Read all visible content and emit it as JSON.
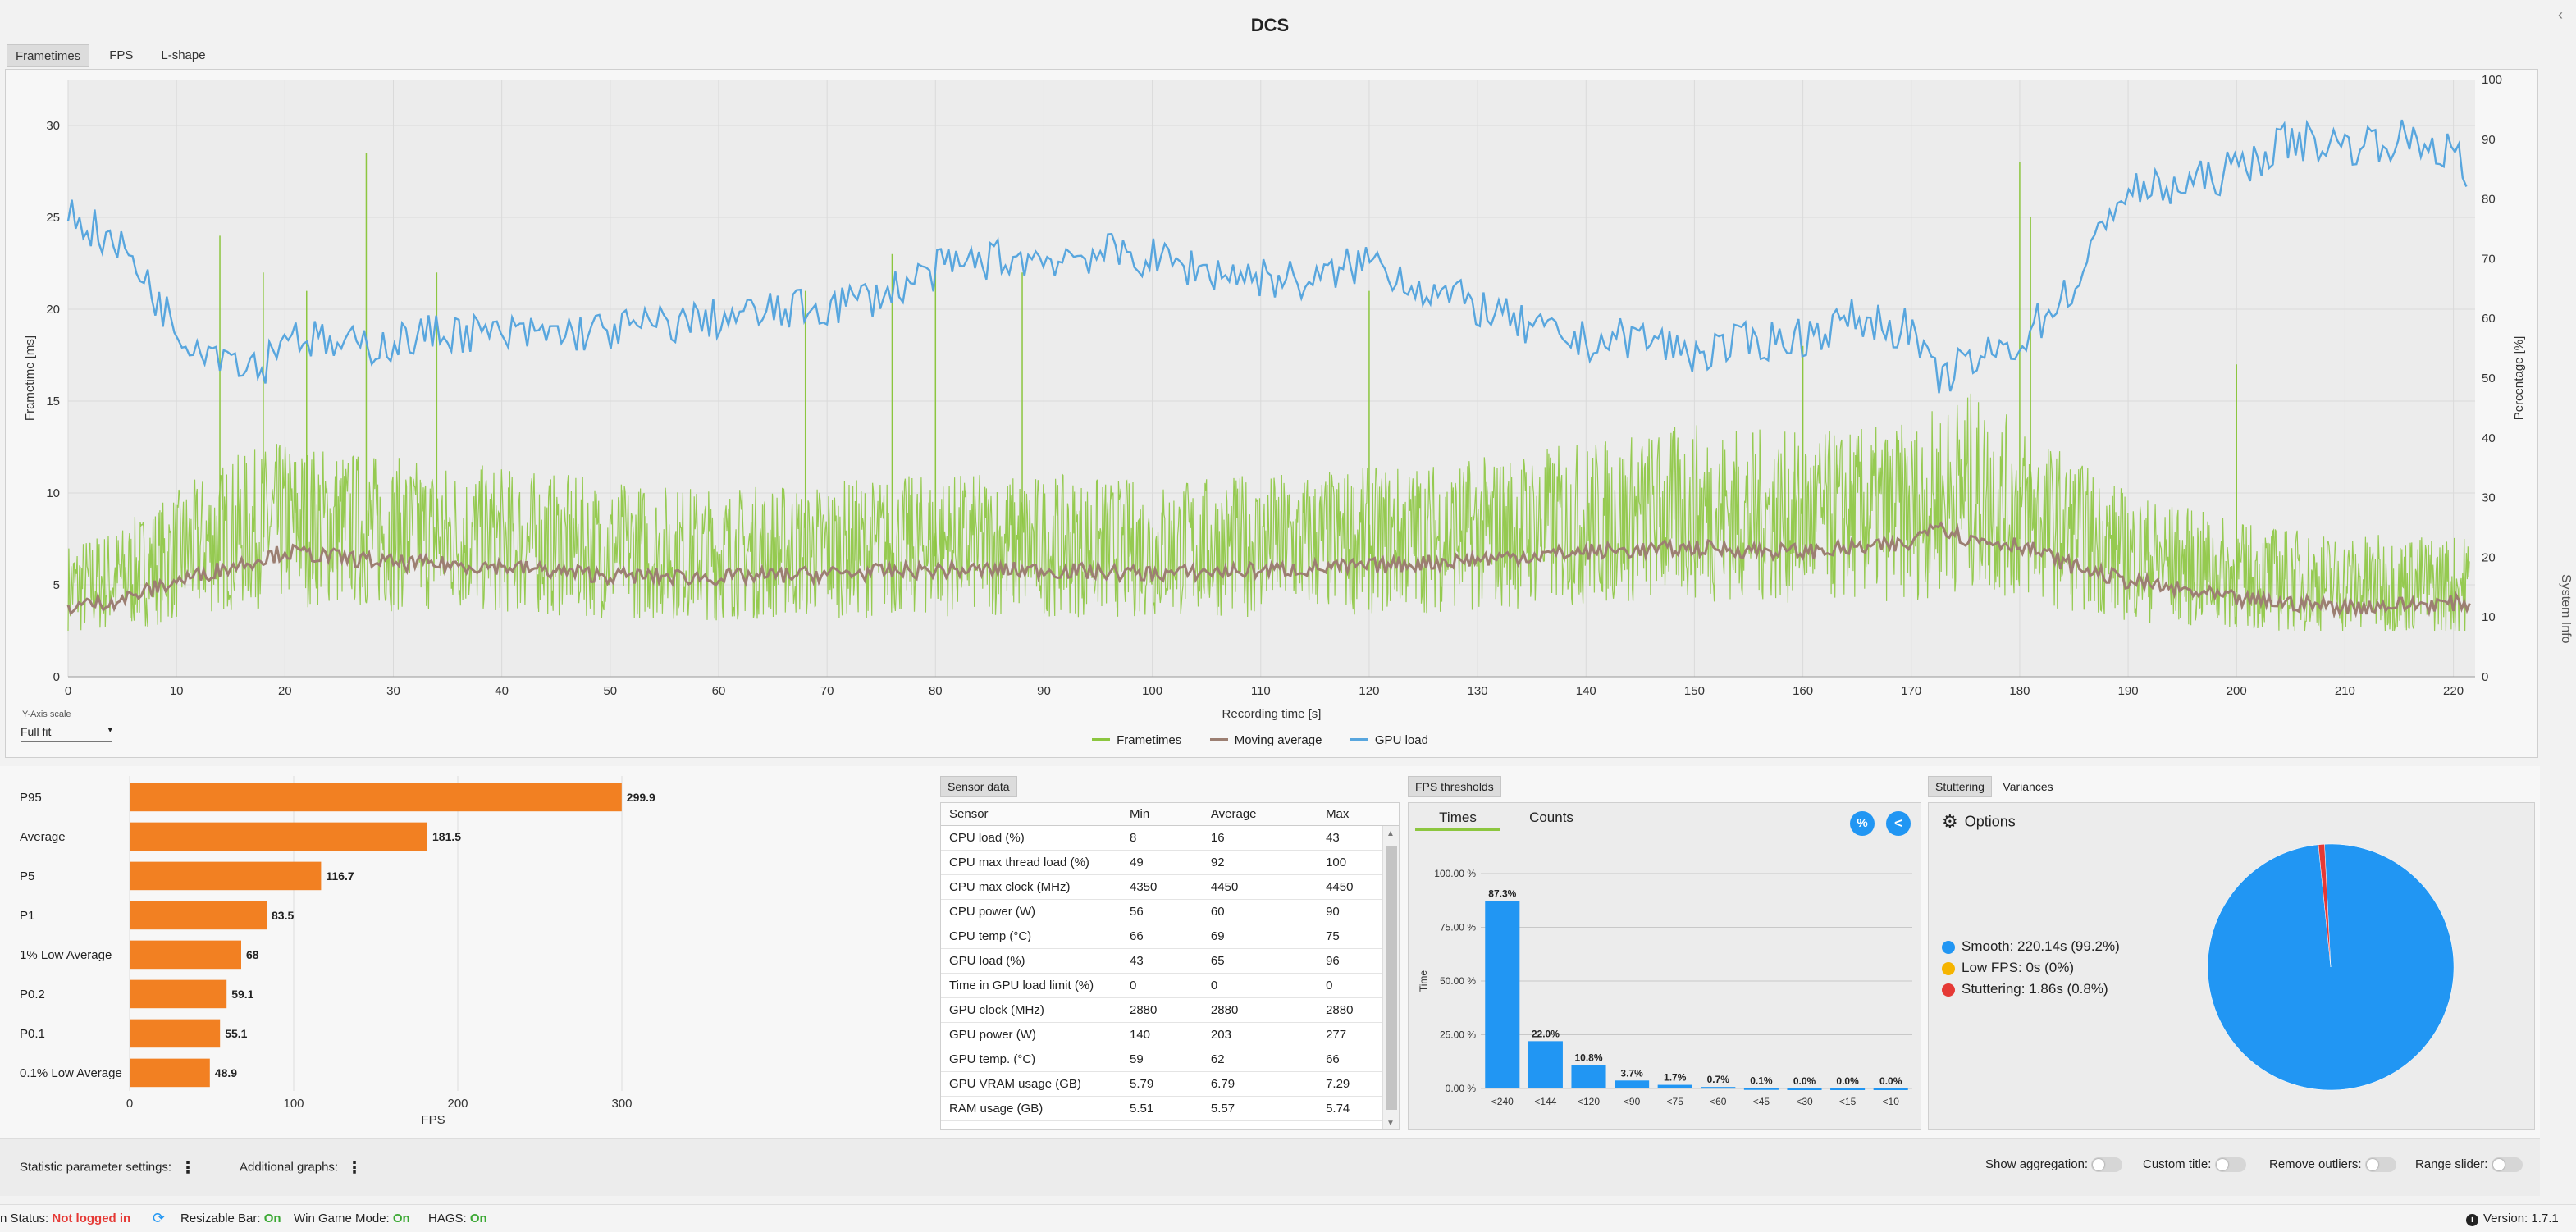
{
  "app": {
    "title": "DCS",
    "system_info_label": "System Info"
  },
  "tabs": [
    {
      "label": "Frametimes",
      "active": true
    },
    {
      "label": "FPS",
      "active": false
    },
    {
      "label": "L-shape",
      "active": false
    }
  ],
  "yaxis_scale": {
    "label": "Y-Axis scale",
    "value": "Full fit"
  },
  "chart_data": [
    {
      "type": "line",
      "title": "",
      "xlabel": "Recording time [s]",
      "ylabel": "Frametime [ms]",
      "y2label": "Percentage [%]",
      "xlim": [
        0,
        222
      ],
      "ylim": [
        0,
        32.5
      ],
      "y2lim": [
        0,
        100
      ],
      "xticks": [
        0,
        10,
        20,
        30,
        40,
        50,
        60,
        70,
        80,
        90,
        100,
        110,
        120,
        130,
        140,
        150,
        160,
        170,
        180,
        190,
        200,
        210,
        220
      ],
      "yticks": [
        0,
        5,
        10,
        15,
        20,
        25,
        30
      ],
      "y2ticks": [
        0,
        10,
        20,
        30,
        40,
        50,
        60,
        70,
        80,
        90,
        100
      ],
      "grid": true,
      "legend": "bottom-center",
      "series": [
        {
          "name": "Frametimes",
          "color": "#8cc63f",
          "axis": "left",
          "x": [
            0,
            5,
            10,
            15,
            20,
            25,
            30,
            40,
            50,
            60,
            70,
            80,
            90,
            100,
            110,
            120,
            130,
            140,
            150,
            160,
            170,
            175,
            180,
            185,
            190,
            200,
            210,
            220
          ],
          "y": [
            4.0,
            4.5,
            5.5,
            6.5,
            7.0,
            6.8,
            6.5,
            6.2,
            5.8,
            5.6,
            5.8,
            6.0,
            6.0,
            5.8,
            6.0,
            6.2,
            6.5,
            7.0,
            7.5,
            7.2,
            7.5,
            8.5,
            7.5,
            6.5,
            5.5,
            4.6,
            4.2,
            4.2
          ],
          "spikes": [
            [
              14,
              24
            ],
            [
              18,
              22
            ],
            [
              22,
              21
            ],
            [
              27.5,
              28.5
            ],
            [
              34,
              22
            ],
            [
              68,
              21
            ],
            [
              76,
              23
            ],
            [
              80,
              22
            ],
            [
              88,
              22
            ],
            [
              120,
              21
            ],
            [
              160,
              18
            ],
            [
              180,
              28
            ],
            [
              181,
              25
            ],
            [
              200,
              17
            ]
          ]
        },
        {
          "name": "Moving average",
          "color": "#9c7f72",
          "axis": "left",
          "x": [
            0,
            5,
            10,
            15,
            20,
            25,
            30,
            40,
            50,
            60,
            70,
            80,
            90,
            100,
            110,
            120,
            130,
            140,
            150,
            160,
            170,
            172,
            175,
            180,
            185,
            190,
            200,
            210,
            220
          ],
          "y": [
            3.8,
            4.2,
            5.2,
            6.0,
            6.8,
            6.5,
            6.2,
            6.0,
            5.5,
            5.4,
            5.6,
            5.8,
            5.8,
            5.6,
            5.8,
            6.0,
            6.4,
            6.8,
            7.0,
            6.8,
            7.2,
            8.5,
            7.5,
            7.2,
            6.0,
            5.2,
            4.2,
            3.8,
            4.0
          ]
        },
        {
          "name": "GPU load",
          "color": "#58a6de",
          "axis": "right",
          "x": [
            0,
            3,
            6,
            8,
            10,
            12,
            15,
            18,
            20,
            25,
            30,
            35,
            40,
            50,
            60,
            70,
            75,
            80,
            85,
            90,
            95,
            100,
            105,
            110,
            115,
            120,
            125,
            130,
            135,
            140,
            145,
            150,
            155,
            160,
            165,
            170,
            172,
            175,
            180,
            183,
            186,
            188,
            190,
            195,
            200,
            205,
            210,
            215,
            220,
            222
          ],
          "y": [
            78,
            74,
            70,
            64,
            58,
            56,
            54,
            52,
            58,
            55,
            56,
            58,
            57,
            58,
            60,
            62,
            64,
            68,
            70,
            70,
            71,
            70,
            68,
            67,
            66,
            70,
            65,
            62,
            58,
            56,
            57,
            54,
            56,
            57,
            60,
            58,
            50,
            52,
            56,
            62,
            67,
            78,
            81,
            82,
            85,
            90,
            89,
            90,
            88,
            80
          ]
        }
      ]
    },
    {
      "type": "bar",
      "orientation": "horizontal",
      "title": "",
      "xlabel": "FPS",
      "categories": [
        "P95",
        "Average",
        "P5",
        "P1",
        "1% Low Average",
        "P0.2",
        "P0.1",
        "0.1% Low Average"
      ],
      "values": [
        299.9,
        181.5,
        116.7,
        83.5,
        68,
        59.1,
        55.1,
        48.9
      ],
      "value_labels": [
        "299.9",
        "181.5",
        "116.7",
        "83.5",
        "68",
        "59.1",
        "55.1",
        "48.9"
      ],
      "xticks": [
        0,
        100,
        200,
        300
      ],
      "xlim": [
        0,
        357
      ],
      "color": "#f28022",
      "grid": true
    },
    {
      "type": "bar",
      "title": "",
      "ylabel": "Time",
      "categories": [
        "<240",
        "<144",
        "<120",
        "<90",
        "<75",
        "<60",
        "<45",
        "<30",
        "<15",
        "<10"
      ],
      "values": [
        87.3,
        22.0,
        10.8,
        3.7,
        1.7,
        0.7,
        0.1,
        0.0,
        0.0,
        0.0
      ],
      "value_labels": [
        "87.3%",
        "22.0%",
        "10.8%",
        "3.7%",
        "1.7%",
        "0.7%",
        "0.1%",
        "0.0%",
        "0.0%",
        "0.0%"
      ],
      "yticks": [
        "0.00 %",
        "25.00 %",
        "50.00 %",
        "75.00 %",
        "100.00 %"
      ],
      "ylim": [
        0,
        100
      ],
      "color": "#2196f3",
      "grid": true
    },
    {
      "type": "pie",
      "title": "",
      "labels": [
        "Smooth",
        "Low FPS",
        "Stuttering"
      ],
      "values": [
        99.2,
        0.0,
        0.8
      ],
      "colors": [
        "#2196f3",
        "#f5b400",
        "#e53935"
      ],
      "legend": "left"
    }
  ],
  "sensor": {
    "tab_label": "Sensor data",
    "headers": [
      "Sensor",
      "Min",
      "Average",
      "Max"
    ],
    "rows": [
      [
        "CPU load (%)",
        "8",
        "16",
        "43"
      ],
      [
        "CPU max thread load (%)",
        "49",
        "92",
        "100"
      ],
      [
        "CPU max clock (MHz)",
        "4350",
        "4450",
        "4450"
      ],
      [
        "CPU power (W)",
        "56",
        "60",
        "90"
      ],
      [
        "CPU temp (°C)",
        "66",
        "69",
        "75"
      ],
      [
        "GPU load (%)",
        "43",
        "65",
        "96"
      ],
      [
        "Time in GPU load limit (%)",
        "0",
        "0",
        "0"
      ],
      [
        "GPU clock (MHz)",
        "2880",
        "2880",
        "2880"
      ],
      [
        "GPU power (W)",
        "140",
        "203",
        "277"
      ],
      [
        "GPU temp. (°C)",
        "59",
        "62",
        "66"
      ],
      [
        "GPU VRAM usage (GB)",
        "5.79",
        "6.79",
        "7.29"
      ],
      [
        "RAM usage (GB)",
        "5.51",
        "5.57",
        "5.74"
      ]
    ]
  },
  "fps_thresholds": {
    "tab_label": "FPS thresholds",
    "subtabs": [
      "Times",
      "Counts"
    ],
    "percent_icon": "%",
    "share_icon": "<"
  },
  "stuttering": {
    "tabs": [
      "Stuttering",
      "Variances"
    ],
    "options_label": "Options",
    "legend": [
      {
        "label": "Smooth:",
        "value": "220.14s (99.2%)"
      },
      {
        "label": "Low FPS:",
        "value": "0s (0%)"
      },
      {
        "label": "Stuttering:",
        "value": "1.86s (0.8%)"
      }
    ]
  },
  "footer": {
    "statistic_label": "Statistic parameter settings:",
    "additional_label": "Additional graphs:",
    "toggles": [
      "Show aggregation:",
      "Custom title:",
      "Remove outliers:",
      "Range slider:"
    ]
  },
  "status": {
    "login_label": "n Status:",
    "login_value": "Not logged in",
    "items": [
      {
        "label": "Resizable Bar:",
        "value": "On"
      },
      {
        "label": "Win Game Mode:",
        "value": "On"
      },
      {
        "label": "HAGS:",
        "value": "On"
      }
    ],
    "version_label": "Version: 1.7.1"
  }
}
